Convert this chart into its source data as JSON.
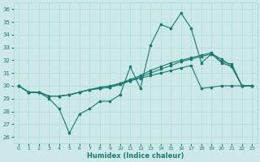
{
  "xlabel": "Humidex (Indice chaleur)",
  "bg_color": "#cce8e8",
  "line_color": "#1a7a6e",
  "xlim": [
    -0.5,
    23.5
  ],
  "ylim": [
    25.5,
    36.5
  ],
  "yticks": [
    26,
    27,
    28,
    29,
    30,
    31,
    32,
    33,
    34,
    35,
    36
  ],
  "xticks": [
    0,
    1,
    2,
    3,
    4,
    5,
    6,
    7,
    8,
    9,
    10,
    11,
    12,
    13,
    14,
    15,
    16,
    17,
    18,
    19,
    20,
    21,
    22,
    23
  ],
  "series": [
    [
      30.0,
      29.5,
      29.5,
      29.0,
      28.2,
      26.3,
      27.8,
      28.2,
      28.8,
      28.8,
      29.3,
      31.5,
      29.8,
      33.2,
      34.8,
      34.5,
      35.7,
      34.5,
      31.8,
      32.5,
      32.1,
      31.5,
      30.0,
      30.0
    ],
    [
      30.0,
      29.5,
      29.5,
      29.2,
      29.2,
      29.3,
      29.5,
      29.7,
      29.8,
      29.9,
      30.2,
      30.5,
      30.8,
      31.2,
      31.5,
      31.8,
      32.0,
      32.2,
      32.4,
      32.6,
      31.9,
      31.7,
      30.0,
      30.0
    ],
    [
      30.0,
      29.5,
      29.5,
      29.2,
      29.2,
      29.3,
      29.5,
      29.7,
      29.8,
      29.9,
      30.1,
      30.4,
      30.7,
      31.0,
      31.3,
      31.6,
      31.9,
      32.1,
      32.3,
      32.5,
      31.8,
      31.5,
      30.0,
      30.0
    ],
    [
      30.0,
      29.5,
      29.5,
      29.2,
      29.2,
      29.3,
      29.5,
      29.7,
      29.9,
      30.0,
      30.2,
      30.4,
      30.6,
      30.8,
      31.0,
      31.2,
      31.4,
      31.6,
      29.8,
      29.9,
      30.0,
      30.0,
      30.0,
      30.0
    ]
  ]
}
